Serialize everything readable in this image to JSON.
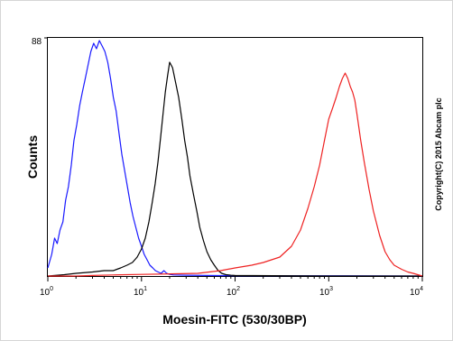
{
  "chart_data": {
    "type": "line",
    "title": "",
    "xlabel": "Moesin-FITC (530/30BP)",
    "ylabel": "Counts",
    "x_scale": "log",
    "xlim": [
      1,
      10000
    ],
    "ylim": [
      0,
      88
    ],
    "y_tick_labels": [
      "88"
    ],
    "x_ticks": [
      {
        "base": "10",
        "exp": "0"
      },
      {
        "base": "10",
        "exp": "1"
      },
      {
        "base": "10",
        "exp": "2"
      },
      {
        "base": "10",
        "exp": "3"
      },
      {
        "base": "10",
        "exp": "4"
      }
    ],
    "grid": false,
    "legend": "none",
    "annotation": "Copyright(C) 2015 Abcam plc",
    "series": [
      {
        "color": "#1a1aff",
        "x": [
          1.0,
          1.1,
          1.18,
          1.26,
          1.35,
          1.45,
          1.55,
          1.66,
          1.78,
          1.9,
          2.04,
          2.19,
          2.34,
          2.51,
          2.69,
          2.88,
          3.09,
          3.31,
          3.55,
          3.8,
          4.07,
          4.37,
          4.68,
          5.01,
          5.37,
          5.75,
          6.17,
          6.61,
          7.08,
          7.59,
          8.13,
          8.71,
          9.33,
          10.0,
          10.7,
          11.5,
          12.3,
          13.2,
          14.1,
          15.1,
          16.2,
          17.4,
          18.6,
          20.0,
          22.0,
          30.0,
          50.0,
          100.0,
          1000.0,
          10000.0
        ],
        "y": [
          3,
          8,
          14,
          12,
          17,
          20,
          28,
          33,
          41,
          50,
          56,
          63,
          68,
          73,
          78,
          83,
          86,
          84,
          87,
          85,
          83,
          79,
          73,
          66,
          61,
          53,
          45,
          39,
          33,
          27,
          22,
          18,
          14,
          11,
          8,
          6,
          4,
          3,
          2,
          1.5,
          1,
          2,
          1,
          0.6,
          0.4,
          0.3,
          0.2,
          0.1,
          0.1,
          0
        ]
      },
      {
        "color": "#000000",
        "x": [
          1.0,
          1.5,
          2.0,
          3.0,
          4.0,
          5.0,
          6.0,
          7.0,
          8.0,
          9.0,
          10.0,
          11.0,
          12.0,
          13.0,
          14.0,
          15.0,
          16.0,
          17.0,
          18.0,
          19.0,
          20.0,
          21.5,
          23.0,
          25.0,
          27.0,
          29.0,
          31.0,
          33.0,
          36.0,
          39.0,
          42.0,
          46.0,
          50.0,
          55.0,
          60.0,
          66.0,
          72.0,
          80.0,
          90.0,
          100.0,
          1000.0,
          10000.0
        ],
        "y": [
          0,
          0.5,
          1,
          1.5,
          2,
          2,
          3,
          4,
          5,
          7,
          10,
          14,
          20,
          27,
          34,
          42,
          51,
          60,
          68,
          74,
          79,
          77,
          72,
          66,
          58,
          50,
          44,
          37,
          30,
          24,
          18,
          13,
          9,
          6,
          4,
          2,
          1,
          0.5,
          0.3,
          0.2,
          0,
          0
        ]
      },
      {
        "color": "#ee2222",
        "x": [
          1.0,
          2.0,
          3.0,
          5.0,
          10.0,
          20.0,
          40.0,
          70.0,
          100.0,
          150.0,
          200.0,
          300.0,
          400.0,
          500.0,
          600.0,
          700.0,
          800.0,
          900.0,
          1000.0,
          1100.0,
          1200.0,
          1300.0,
          1400.0,
          1500.0,
          1600.0,
          1700.0,
          1800.0,
          1900.0,
          2000.0,
          2200.0,
          2400.0,
          2700.0,
          3000.0,
          3500.0,
          4000.0,
          4500.0,
          5000.0,
          6000.0,
          7000.0,
          8000.0,
          10000.0
        ],
        "y": [
          0,
          0,
          0.2,
          0.4,
          0.6,
          0.8,
          1,
          2,
          3,
          4,
          5,
          7,
          11,
          17,
          25,
          33,
          41,
          50,
          58,
          62,
          66,
          70,
          73,
          75,
          73,
          70,
          68,
          65,
          60,
          50,
          42,
          32,
          24,
          15,
          9,
          6,
          4,
          2.5,
          1.5,
          1,
          0
        ]
      }
    ]
  }
}
